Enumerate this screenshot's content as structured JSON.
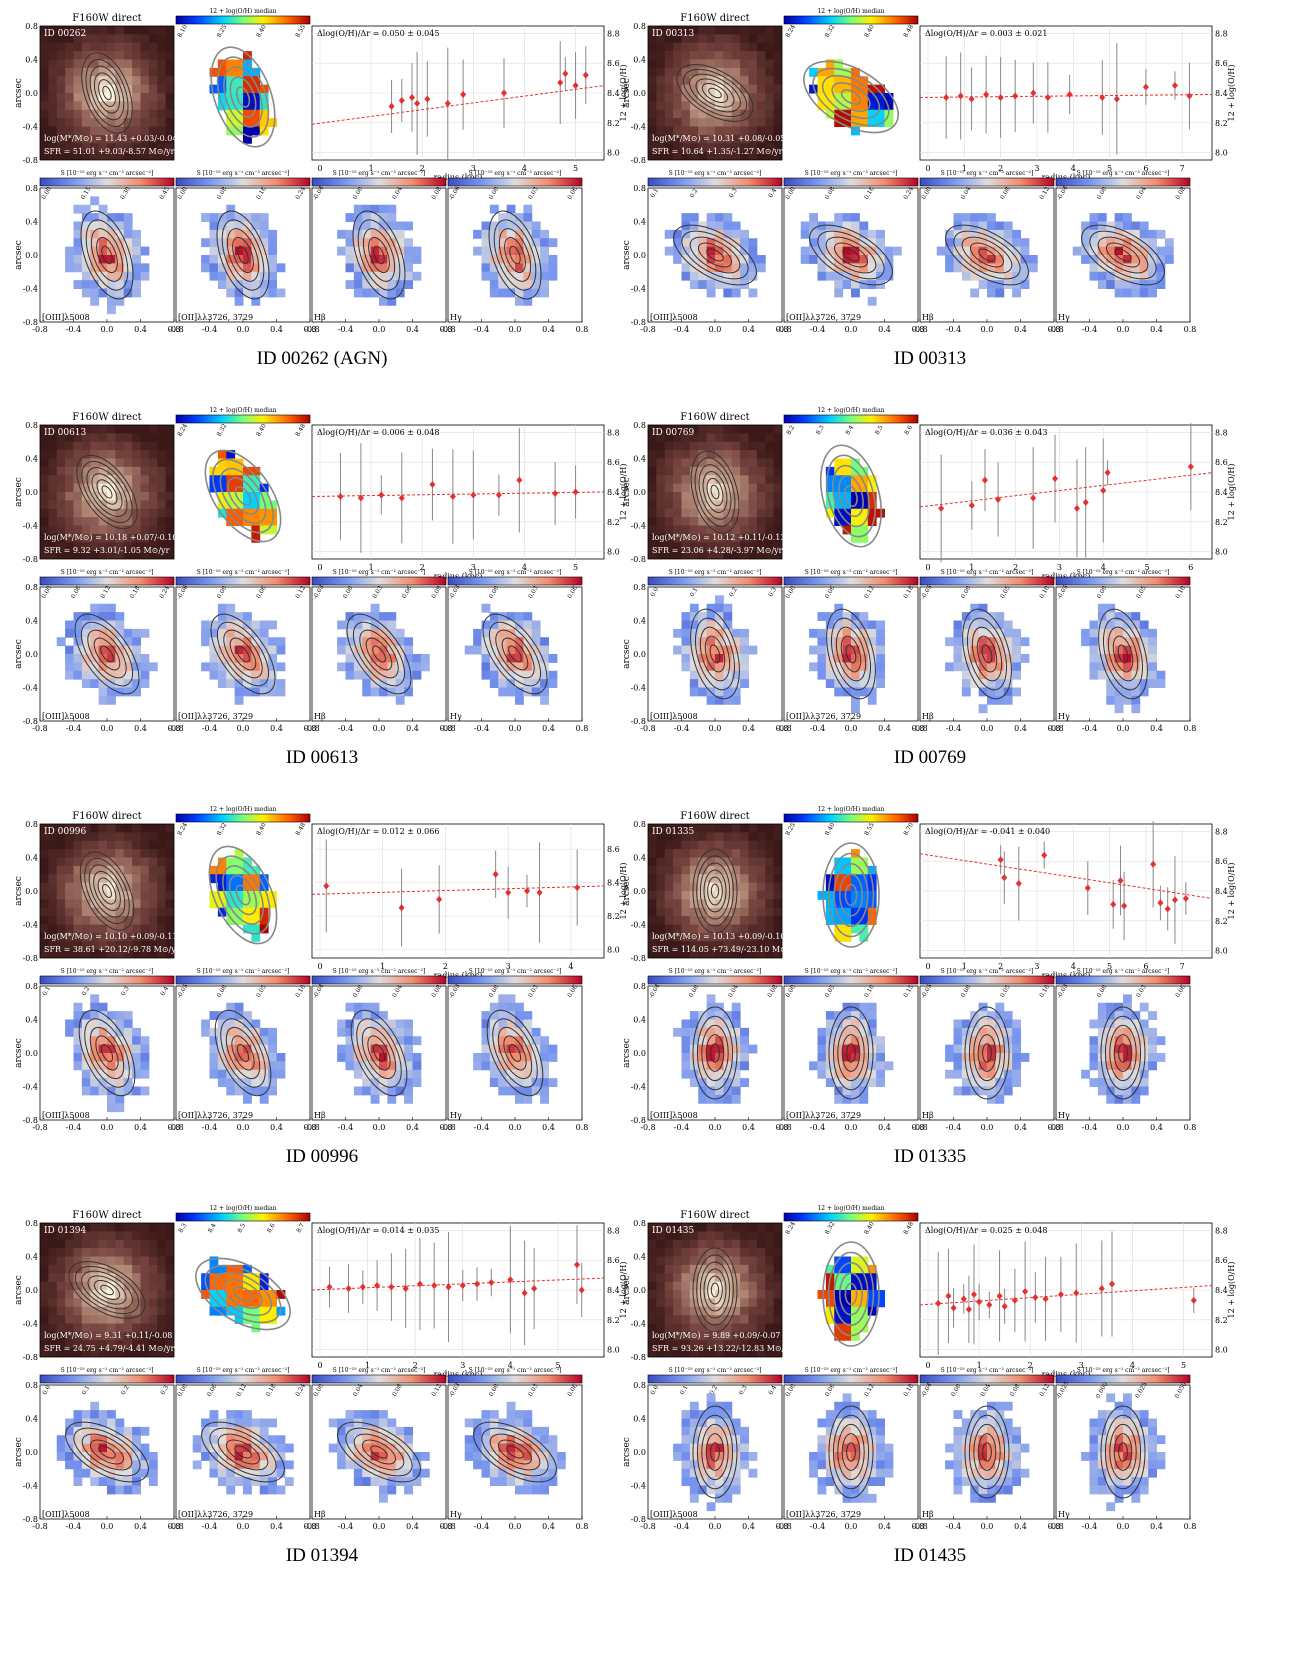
{
  "colorbar_labels": {
    "flux": "S [10⁻¹⁵ erg s⁻¹ cm⁻² arcsec⁻²]",
    "metal": "12 + log(O/H) median"
  },
  "common": {
    "direct_title": "F160W direct",
    "axis_arcsec": "arcsec",
    "axis_radius": "radius (kpc)",
    "axis_metal": "12 + log(O/H)",
    "arcsec_ticks": [
      "-0.8",
      "-0.4",
      "0.0",
      "0.4",
      "0.8"
    ],
    "line_labels": [
      "[OIII]λ5008",
      "[OII]λλ3726, 3729",
      "Hβ",
      "Hγ"
    ]
  },
  "galaxies": [
    {
      "id_label": "ID 00262",
      "caption": "ID 00262 (AGN)",
      "mass_label": "log(M*/M⊙) = 11.43 +0.03/-0.04",
      "sfr_label": "SFR = 51.01 +9.03/-8.57 M⊙/yr",
      "gradient_label": "Δlog(O/H)/Δr = 0.050 ± 0.045",
      "metal_ticks": [
        "8.10",
        "8.25",
        "8.40",
        "8.55"
      ],
      "flux_ticks": [
        [
          "0.00",
          "0.15",
          "0.30",
          "0.45"
        ],
        [
          "0.00",
          "0.08",
          "0.16",
          "0.24"
        ],
        [
          "-0.04",
          "0.00",
          "0.04",
          "0.08"
        ],
        [
          "-0.06",
          "0.00",
          "0.03",
          "0.06"
        ]
      ],
      "gradient": {
        "x_ticks": [
          "0",
          "1",
          "2",
          "3",
          "4",
          "5"
        ],
        "x_max": 5.4,
        "y_ticks": [
          "8.0",
          "8.2",
          "8.4",
          "8.6",
          "8.8"
        ],
        "y_min": 7.95,
        "y_max": 8.85,
        "fit": [
          8.19,
          8.45
        ],
        "points": [
          [
            1.4,
            8.31
          ],
          [
            1.6,
            8.35
          ],
          [
            1.8,
            8.37
          ],
          [
            1.9,
            8.33
          ],
          [
            2.1,
            8.36
          ],
          [
            2.5,
            8.33
          ],
          [
            2.8,
            8.39
          ],
          [
            3.6,
            8.4
          ],
          [
            4.7,
            8.47
          ],
          [
            4.8,
            8.53
          ],
          [
            5.0,
            8.45
          ],
          [
            5.2,
            8.52
          ]
        ]
      }
    },
    {
      "id_label": "ID 00313",
      "caption": "ID 00313",
      "mass_label": "log(M*/M⊙) = 10.31 +0.08/-0.05",
      "sfr_label": "SFR = 10.64 +1.35/-1.27 M⊙/yr",
      "gradient_label": "Δlog(O/H)/Δr = 0.003 ± 0.021",
      "metal_ticks": [
        "8.24",
        "8.32",
        "8.40",
        "8.48"
      ],
      "flux_ticks": [
        [
          "0.1",
          "0.2",
          "0.3",
          "0.4"
        ],
        [
          "0.00",
          "0.08",
          "0.16",
          "0.24"
        ],
        [
          "0.00",
          "0.04",
          "0.08",
          "0.12"
        ],
        [
          "-0.04",
          "0.00",
          "0.04",
          "0.08"
        ]
      ],
      "gradient": {
        "x_ticks": [
          "0",
          "1",
          "2",
          "3",
          "4",
          "5",
          "6",
          "7"
        ],
        "x_max": 7.6,
        "y_ticks": [
          "8.0",
          "8.2",
          "8.4",
          "8.6",
          "8.8"
        ],
        "y_min": 7.95,
        "y_max": 8.85,
        "fit": [
          8.37,
          8.39
        ],
        "points": [
          [
            0.5,
            8.37
          ],
          [
            0.9,
            8.38
          ],
          [
            1.2,
            8.36
          ],
          [
            1.6,
            8.39
          ],
          [
            2.0,
            8.37
          ],
          [
            2.4,
            8.38
          ],
          [
            2.9,
            8.4
          ],
          [
            3.3,
            8.37
          ],
          [
            3.9,
            8.39
          ],
          [
            4.8,
            8.37
          ],
          [
            5.2,
            8.36
          ],
          [
            6.0,
            8.44
          ],
          [
            6.8,
            8.45
          ],
          [
            7.2,
            8.38
          ]
        ]
      }
    },
    {
      "id_label": "ID 00613",
      "caption": "ID 00613",
      "mass_label": "log(M*/M⊙) = 10.18 +0.07/-0.10",
      "sfr_label": "SFR = 9.32 +3.01/-1.05 M⊙/yr",
      "gradient_label": "Δlog(O/H)/Δr = 0.006 ± 0.048",
      "metal_ticks": [
        "8.24",
        "8.32",
        "8.40",
        "8.48"
      ],
      "flux_ticks": [
        [
          "0.00",
          "0.06",
          "0.12",
          "0.18",
          "0.24"
        ],
        [
          "-0.06",
          "0.00",
          "0.06",
          "0.12"
        ],
        [
          "-0.03",
          "0.00",
          "0.03",
          "0.06",
          "0.09"
        ],
        [
          "-0.03",
          "0.00",
          "0.03",
          "0.06"
        ]
      ],
      "gradient": {
        "x_ticks": [
          "0",
          "1",
          "2",
          "3",
          "4",
          "5"
        ],
        "x_max": 5.4,
        "y_ticks": [
          "8.0",
          "8.2",
          "8.4",
          "8.6",
          "8.8"
        ],
        "y_min": 7.95,
        "y_max": 8.85,
        "fit": [
          8.37,
          8.4
        ],
        "points": [
          [
            0.4,
            8.37
          ],
          [
            0.8,
            8.36
          ],
          [
            1.2,
            8.38
          ],
          [
            1.6,
            8.36
          ],
          [
            2.2,
            8.45
          ],
          [
            2.6,
            8.37
          ],
          [
            3.0,
            8.38
          ],
          [
            3.5,
            8.38
          ],
          [
            3.9,
            8.48
          ],
          [
            4.6,
            8.39
          ],
          [
            5.0,
            8.4
          ]
        ]
      }
    },
    {
      "id_label": "ID 00769",
      "caption": "ID 00769",
      "mass_label": "log(M*/M⊙) = 10.12 +0.11/-0.13",
      "sfr_label": "SFR = 23.06 +4.28/-3.97 M⊙/yr",
      "gradient_label": "Δlog(O/H)/Δr = 0.036 ± 0.043",
      "metal_ticks": [
        "8.2",
        "8.3",
        "8.4",
        "8.5",
        "8.6"
      ],
      "flux_ticks": [
        [
          "0.0",
          "0.1",
          "0.2",
          "0.3"
        ],
        [
          "0.00",
          "0.06",
          "0.12",
          "0.18"
        ],
        [
          "-0.05",
          "0.00",
          "0.05",
          "0.10"
        ],
        [
          "-0.05",
          "0.00",
          "0.05",
          "0.10"
        ]
      ],
      "gradient": {
        "x_ticks": [
          "0",
          "1",
          "2",
          "3",
          "4",
          "5",
          "6"
        ],
        "x_max": 6.3,
        "y_ticks": [
          "8.0",
          "8.2",
          "8.4",
          "8.6",
          "8.8"
        ],
        "y_min": 7.95,
        "y_max": 8.85,
        "fit": [
          8.3,
          8.53
        ],
        "points": [
          [
            0.3,
            8.29
          ],
          [
            1.0,
            8.31
          ],
          [
            1.3,
            8.48
          ],
          [
            1.6,
            8.35
          ],
          [
            2.4,
            8.36
          ],
          [
            2.9,
            8.49
          ],
          [
            3.4,
            8.29
          ],
          [
            3.6,
            8.33
          ],
          [
            4.0,
            8.41
          ],
          [
            4.1,
            8.53
          ],
          [
            6.0,
            8.57
          ]
        ]
      }
    },
    {
      "id_label": "ID 00996",
      "caption": "ID 00996",
      "mass_label": "log(M*/M⊙) = 10.10 +0.09/-0.11",
      "sfr_label": "SFR = 38.61 +20.12/-9.78 M⊙/yr",
      "gradient_label": "Δlog(O/H)/Δr = 0.012 ± 0.066",
      "metal_ticks": [
        "8.24",
        "8.32",
        "8.40",
        "8.48"
      ],
      "flux_ticks": [
        [
          "0.1",
          "0.2",
          "0.3",
          "0.4"
        ],
        [
          "-0.05",
          "0.00",
          "0.05",
          "0.10"
        ],
        [
          "-0.04",
          "0.00",
          "0.04",
          "0.08"
        ],
        [
          "-0.03",
          "0.00",
          "0.03",
          "0.06"
        ]
      ],
      "gradient": {
        "x_ticks": [
          "0",
          "1",
          "2",
          "3",
          "4"
        ],
        "x_max": 4.4,
        "y_ticks": [
          "8.0",
          "8.2",
          "8.4",
          "8.6"
        ],
        "y_min": 7.95,
        "y_max": 8.75,
        "fit": [
          8.33,
          8.38
        ],
        "points": [
          [
            0.1,
            8.38
          ],
          [
            1.3,
            8.25
          ],
          [
            1.9,
            8.3
          ],
          [
            2.8,
            8.45
          ],
          [
            3.0,
            8.34
          ],
          [
            3.3,
            8.35
          ],
          [
            3.5,
            8.34
          ],
          [
            4.1,
            8.37
          ]
        ]
      }
    },
    {
      "id_label": "ID 01335",
      "caption": "ID 01335",
      "mass_label": "log(M*/M⊙) = 10.13 +0.09/-0.10",
      "sfr_label": "SFR = 114.05 +73.49/-23.10 M⊙/yr",
      "gradient_label": "Δlog(O/H)/Δr = -0.041 ± 0.040",
      "metal_ticks": [
        "8.25",
        "8.40",
        "8.55",
        "8.70"
      ],
      "flux_ticks": [
        [
          "-0.04",
          "0.00",
          "0.04",
          "0.08"
        ],
        [
          "0.00",
          "0.05",
          "0.10",
          "0.15"
        ],
        [
          "-0.05",
          "0.00",
          "0.05",
          "0.10"
        ],
        [
          "-0.03",
          "0.00",
          "0.03",
          "0.06"
        ]
      ],
      "gradient": {
        "x_ticks": [
          "0",
          "1",
          "2",
          "3",
          "4",
          "5",
          "6",
          "7"
        ],
        "x_max": 7.6,
        "y_ticks": [
          "8.0",
          "8.2",
          "8.4",
          "8.6",
          "8.8"
        ],
        "y_min": 7.95,
        "y_max": 8.85,
        "fit": [
          8.65,
          8.35
        ],
        "points": [
          [
            2.0,
            8.61
          ],
          [
            2.1,
            8.49
          ],
          [
            2.5,
            8.45
          ],
          [
            3.2,
            8.64
          ],
          [
            4.4,
            8.42
          ],
          [
            5.1,
            8.31
          ],
          [
            5.3,
            8.47
          ],
          [
            5.4,
            8.3
          ],
          [
            6.2,
            8.58
          ],
          [
            6.4,
            8.32
          ],
          [
            6.6,
            8.28
          ],
          [
            6.8,
            8.34
          ],
          [
            7.1,
            8.35
          ]
        ]
      }
    },
    {
      "id_label": "ID 01394",
      "caption": "ID 01394",
      "mass_label": "log(M*/M⊙) = 9.31 +0.11/-0.08",
      "sfr_label": "SFR = 24.75 +4.79/-4.41 M⊙/yr",
      "gradient_label": "Δlog(O/H)/Δr = 0.014 ± 0.035",
      "metal_ticks": [
        "8.3",
        "8.4",
        "8.5",
        "8.6",
        "8.7"
      ],
      "flux_ticks": [
        [
          "0.0",
          "0.1",
          "0.2",
          "0.3"
        ],
        [
          "0.00",
          "0.06",
          "0.12",
          "0.18",
          "0.24"
        ],
        [
          "0.00",
          "0.04",
          "0.08",
          "0.12"
        ],
        [
          "-0.03",
          "0.00",
          "0.03",
          "0.06"
        ]
      ],
      "gradient": {
        "x_ticks": [
          "0",
          "1",
          "2",
          "3",
          "4",
          "5"
        ],
        "x_max": 5.8,
        "y_ticks": [
          "8.0",
          "8.2",
          "8.4",
          "8.6",
          "8.8"
        ],
        "y_min": 7.95,
        "y_max": 8.85,
        "fit": [
          8.4,
          8.48
        ],
        "points": [
          [
            0.2,
            8.42
          ],
          [
            0.6,
            8.41
          ],
          [
            0.9,
            8.42
          ],
          [
            1.2,
            8.43
          ],
          [
            1.5,
            8.42
          ],
          [
            1.8,
            8.41
          ],
          [
            2.1,
            8.44
          ],
          [
            2.4,
            8.43
          ],
          [
            2.7,
            8.42
          ],
          [
            3.0,
            8.43
          ],
          [
            3.3,
            8.44
          ],
          [
            3.6,
            8.45
          ],
          [
            4.0,
            8.47
          ],
          [
            4.3,
            8.38
          ],
          [
            4.5,
            8.41
          ],
          [
            5.4,
            8.57
          ],
          [
            5.5,
            8.4
          ]
        ]
      }
    },
    {
      "id_label": "ID 01435",
      "caption": "ID 01435",
      "mass_label": "log(M*/M⊙) = 9.89 +0.09/-0.07",
      "sfr_label": "SFR = 93.26 +13.22/-12.83 M⊙/yr",
      "gradient_label": "Δlog(O/H)/Δr = 0.025 ± 0.048",
      "metal_ticks": [
        "8.24",
        "8.32",
        "8.40",
        "8.48"
      ],
      "flux_ticks": [
        [
          "0.0",
          "0.1",
          "0.2",
          "0.3",
          "0.4"
        ],
        [
          "0.00",
          "0.06",
          "0.12",
          "0.18"
        ],
        [
          "-0.04",
          "0.00",
          "0.04",
          "0.08",
          "0.12"
        ],
        [
          "-0.025",
          "0.000",
          "0.025",
          "0.050"
        ]
      ],
      "gradient": {
        "x_ticks": [
          "0",
          "1",
          "2",
          "3",
          "4",
          "5"
        ],
        "x_max": 5.4,
        "y_ticks": [
          "8.0",
          "8.2",
          "8.4",
          "8.6",
          "8.8"
        ],
        "y_min": 7.95,
        "y_max": 8.85,
        "fit": [
          8.3,
          8.43
        ],
        "points": [
          [
            0.2,
            8.31
          ],
          [
            0.4,
            8.36
          ],
          [
            0.5,
            8.28
          ],
          [
            0.7,
            8.34
          ],
          [
            0.8,
            8.27
          ],
          [
            0.9,
            8.37
          ],
          [
            1.0,
            8.32
          ],
          [
            1.2,
            8.3
          ],
          [
            1.4,
            8.36
          ],
          [
            1.5,
            8.29
          ],
          [
            1.7,
            8.33
          ],
          [
            1.9,
            8.39
          ],
          [
            2.1,
            8.35
          ],
          [
            2.3,
            8.34
          ],
          [
            2.6,
            8.37
          ],
          [
            2.9,
            8.38
          ],
          [
            3.4,
            8.41
          ],
          [
            3.6,
            8.44
          ],
          [
            5.2,
            8.33
          ]
        ]
      }
    }
  ]
}
